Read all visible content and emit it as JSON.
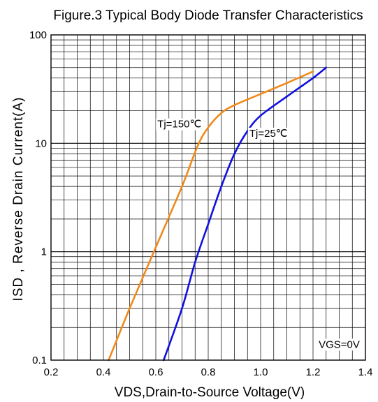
{
  "chart_data": {
    "type": "line",
    "title": "Figure.3 Typical Body Diode Transfer Characteristics",
    "xlabel": "VDS,Drain-to-Source Voltage(V)",
    "ylabel": "ISD , Reverse Drain Current(A)",
    "xlim": [
      0.2,
      1.4
    ],
    "ylim": [
      0.1,
      100
    ],
    "yscale": "log",
    "grid": true,
    "x_ticks": [
      0.2,
      0.4,
      0.6,
      0.8,
      1.0,
      1.2,
      1.4
    ],
    "x_tick_labels": [
      "0.2",
      "0.4",
      "0.6",
      "0.8",
      "1.0",
      "1.2",
      "1.4"
    ],
    "y_ticks": [
      0.1,
      1,
      10,
      100
    ],
    "y_tick_labels": [
      "0.1",
      "1",
      "10",
      "100"
    ],
    "series": [
      {
        "name": "Tj=150℃",
        "color": "#f08a1a",
        "x": [
          0.42,
          0.5,
          0.6,
          0.7,
          0.76,
          0.8,
          0.85,
          0.9,
          1.0,
          1.1,
          1.2
        ],
        "y": [
          0.1,
          0.3,
          1.1,
          4.0,
          9.5,
          14.0,
          19.0,
          22.5,
          28.5,
          36.0,
          46.0
        ]
      },
      {
        "name": "Tj=25℃",
        "color": "#1010e0",
        "x": [
          0.63,
          0.7,
          0.75,
          0.8,
          0.85,
          0.9,
          0.95,
          1.0,
          1.1,
          1.2,
          1.25
        ],
        "y": [
          0.1,
          0.3,
          0.8,
          1.8,
          4.0,
          8.0,
          13.0,
          18.0,
          27.0,
          40.0,
          50.0
        ]
      }
    ],
    "annotations": [
      {
        "text": "Tj=150℃",
        "x": 0.69,
        "y": 14
      },
      {
        "text": "Tj=25℃",
        "x": 1.03,
        "y": 11.5
      },
      {
        "text": "VGS=0V",
        "x": 1.3,
        "y": 0.13
      }
    ],
    "axis_color": "#000000",
    "grid_color": "#000000"
  }
}
